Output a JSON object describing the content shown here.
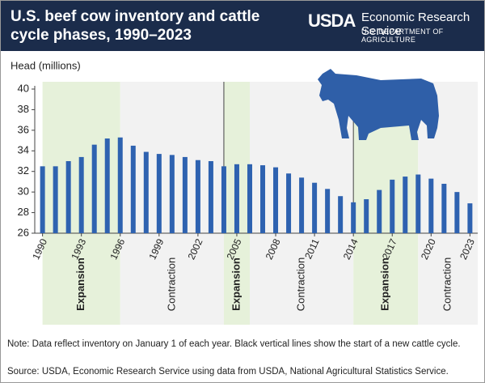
{
  "header": {
    "org": "USDA",
    "service": "Economic Research Service",
    "department": "U.S. DEPARTMENT OF AGRICULTURE"
  },
  "chart_data": {
    "type": "bar",
    "title": "U.S. beef cow inventory and cattle cycle phases, 1990–2023",
    "y_label": "Head (millions)",
    "x": [
      1990,
      1991,
      1992,
      1993,
      1994,
      1995,
      1996,
      1997,
      1998,
      1999,
      2000,
      2001,
      2002,
      2003,
      2004,
      2005,
      2006,
      2007,
      2008,
      2009,
      2010,
      2011,
      2012,
      2013,
      2014,
      2015,
      2016,
      2017,
      2018,
      2019,
      2020,
      2021,
      2022,
      2023
    ],
    "values": [
      32.5,
      32.5,
      33.0,
      33.4,
      34.6,
      35.2,
      35.3,
      34.5,
      33.9,
      33.7,
      33.6,
      33.4,
      33.1,
      33.0,
      32.5,
      32.7,
      32.7,
      32.6,
      32.4,
      31.8,
      31.4,
      30.9,
      30.3,
      29.6,
      29.0,
      29.3,
      30.2,
      31.2,
      31.5,
      31.7,
      31.3,
      30.8,
      30.0,
      28.9
    ],
    "color": "#2e62b0",
    "xlim": [
      1989.4,
      2023.6
    ],
    "xticks": [
      1990,
      1993,
      1996,
      1999,
      2002,
      2005,
      2008,
      2011,
      2014,
      2017,
      2020,
      2023
    ],
    "ylim": [
      26,
      40
    ],
    "yticks": [
      26,
      28,
      30,
      32,
      34,
      36,
      38,
      40
    ],
    "phases": [
      {
        "label": "Expansion",
        "start": 1990,
        "end": 1996,
        "color": "#e6f1da"
      },
      {
        "label": "Contraction",
        "start": 1996,
        "end": 2004,
        "color": "#f2f2f2"
      },
      {
        "label": "Expansion",
        "start": 2004,
        "end": 2006,
        "color": "#e6f1da"
      },
      {
        "label": "Contraction",
        "start": 2006,
        "end": 2014,
        "color": "#f2f2f2"
      },
      {
        "label": "Expansion",
        "start": 2014,
        "end": 2019,
        "color": "#e6f1da"
      },
      {
        "label": "Contraction",
        "start": 2019,
        "end": 2023.6,
        "color": "#f2f2f2"
      }
    ],
    "cycle_starts": [
      2004,
      2014
    ],
    "note": "Note: Data reflect inventory on January 1 of each year. Black vertical lines show the start of a new cattle cycle.",
    "source": "Source: USDA, Economic Research Service using data from USDA, National Agricultural Statistics Service."
  }
}
